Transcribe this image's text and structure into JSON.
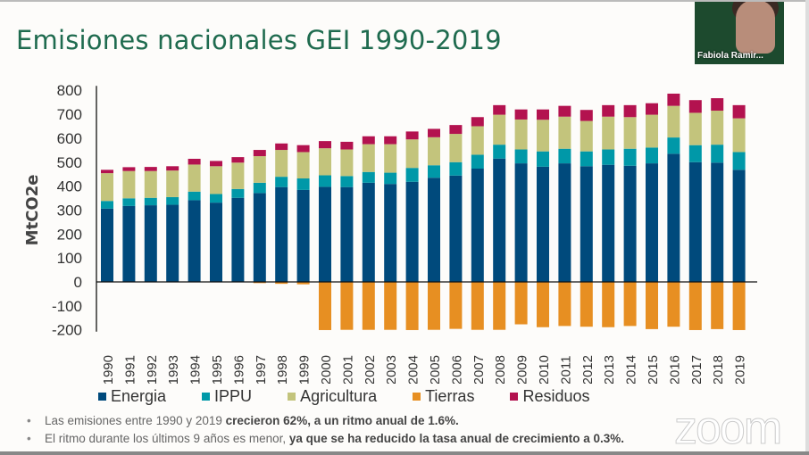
{
  "slide": {
    "title": "Emisiones nacionales GEI 1990-2019",
    "bullets": [
      {
        "normal": "Las emisiones entre 1990 y 2019 ",
        "bold": "crecieron 62%, a un ritmo anual de 1.6%."
      },
      {
        "normal": "El ritmo durante los últimos 9 años es menor, ",
        "bold": "ya que se ha reducido la tasa anual de crecimiento a 0.3%."
      }
    ]
  },
  "video": {
    "participant_name": "Fabiola Ramir..."
  },
  "zoom_logo": "zoom",
  "chart_data": {
    "type": "bar",
    "stacked": true,
    "title": "Emisiones nacionales GEI 1990-2019",
    "ylabel": "MtCO2e",
    "ylim": [
      -200,
      800
    ],
    "yticks": [
      -200,
      -100,
      0,
      100,
      200,
      300,
      400,
      500,
      600,
      700,
      800
    ],
    "grid": false,
    "legend_position": "bottom",
    "categories": [
      "1990",
      "1991",
      "1992",
      "1993",
      "1994",
      "1995",
      "1996",
      "1997",
      "1998",
      "1999",
      "2000",
      "2001",
      "2002",
      "2003",
      "2004",
      "2005",
      "2006",
      "2007",
      "2008",
      "2009",
      "2010",
      "2011",
      "2012",
      "2013",
      "2014",
      "2015",
      "2016",
      "2017",
      "2018",
      "2019"
    ],
    "series": [
      {
        "name": "Energia",
        "color": "#004a7c",
        "values": [
          306,
          317,
          320,
          322,
          341,
          331,
          351,
          371,
          396,
          384,
          397,
          396,
          414,
          409,
          418,
          435,
          444,
          473,
          515,
          495,
          481,
          495,
          483,
          489,
          485,
          495,
          535,
          500,
          498,
          468
        ]
      },
      {
        "name": "IPPU",
        "color": "#0098a8",
        "values": [
          32,
          32,
          31,
          32,
          36,
          36,
          37,
          43,
          43,
          48,
          48,
          46,
          45,
          47,
          58,
          52,
          56,
          58,
          58,
          58,
          64,
          61,
          62,
          64,
          71,
          66,
          68,
          71,
          75,
          74
        ]
      },
      {
        "name": "Agricultura",
        "color": "#c3c47c",
        "values": [
          116,
          114,
          112,
          111,
          113,
          116,
          110,
          111,
          112,
          110,
          113,
          111,
          116,
          119,
          119,
          117,
          118,
          119,
          125,
          125,
          132,
          134,
          127,
          137,
          132,
          137,
          132,
          135,
          142,
          141
        ]
      },
      {
        "name": "Tierras",
        "color": "#e78f22",
        "values": [
          0,
          0,
          0,
          0,
          0,
          0,
          0,
          -5,
          -8,
          -10,
          -201,
          -200,
          -200,
          -200,
          -201,
          -200,
          -196,
          -200,
          -200,
          -177,
          -189,
          -184,
          -187,
          -189,
          -184,
          -197,
          -187,
          -201,
          -197,
          -201
        ]
      },
      {
        "name": "Residuos",
        "color": "#b3124f",
        "values": [
          14,
          16,
          17,
          18,
          24,
          22,
          23,
          26,
          27,
          29,
          30,
          32,
          33,
          33,
          33,
          35,
          37,
          38,
          40,
          42,
          43,
          45,
          46,
          48,
          50,
          48,
          51,
          53,
          52,
          55
        ]
      }
    ]
  }
}
